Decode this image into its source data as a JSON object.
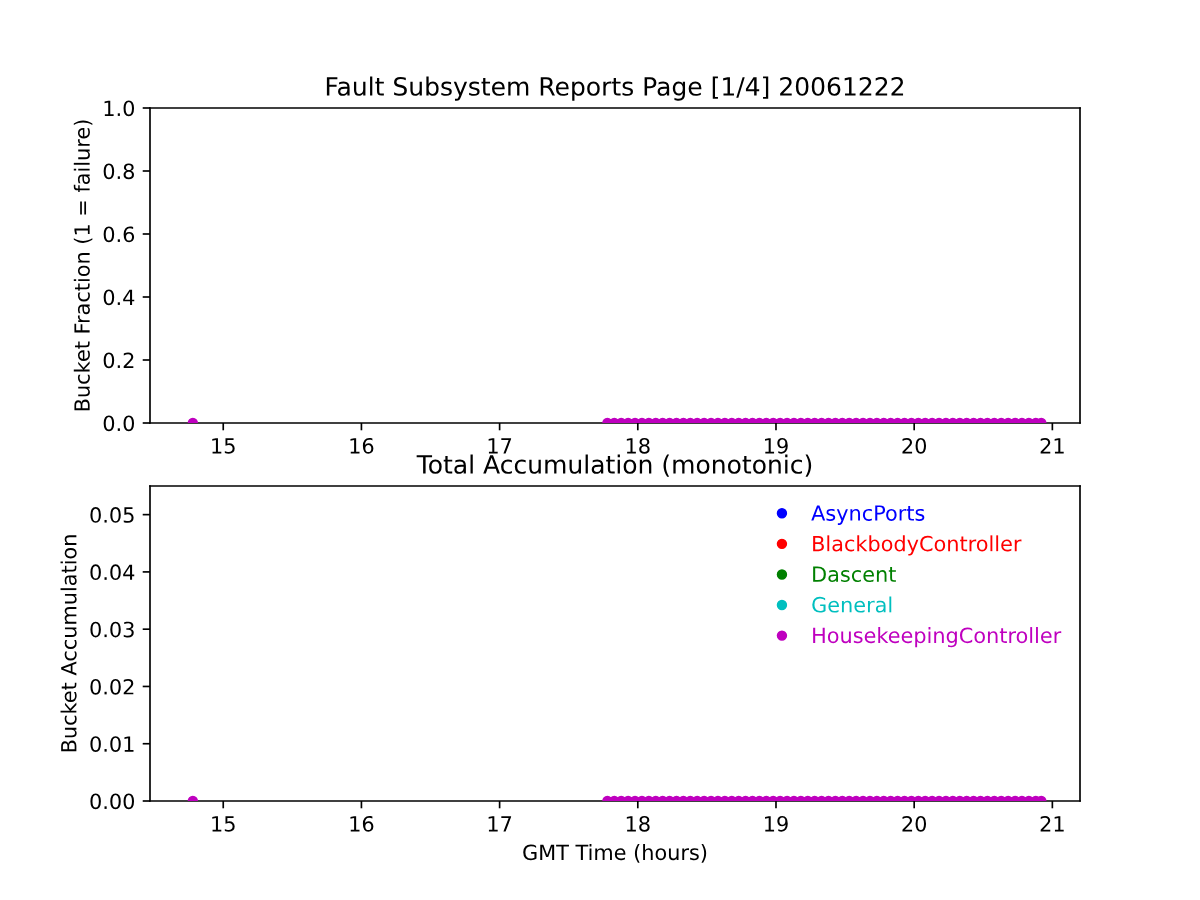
{
  "chart_data": [
    {
      "type": "scatter",
      "title": "Fault Subsystem Reports Page [1/4] 20061222",
      "ylabel": "Bucket Fraction (1 = failure)",
      "x": [
        14.78,
        17.78,
        17.83,
        17.88,
        17.93,
        17.98,
        18.03,
        18.08,
        18.13,
        18.18,
        18.23,
        18.28,
        18.33,
        18.38,
        18.43,
        18.48,
        18.53,
        18.58,
        18.63,
        18.68,
        18.73,
        18.78,
        18.83,
        18.88,
        18.93,
        18.98,
        19.03,
        19.08,
        19.13,
        19.18,
        19.23,
        19.28,
        19.33,
        19.38,
        19.43,
        19.48,
        19.53,
        19.58,
        19.63,
        19.68,
        19.73,
        19.78,
        19.83,
        19.88,
        19.93,
        19.98,
        20.03,
        20.08,
        20.13,
        20.18,
        20.23,
        20.28,
        20.33,
        20.38,
        20.43,
        20.48,
        20.53,
        20.58,
        20.63,
        20.68,
        20.73,
        20.78,
        20.83,
        20.88,
        20.92
      ],
      "series": [
        {
          "color": "#bf00bf",
          "values": [
            0,
            0,
            0,
            0,
            0,
            0,
            0,
            0,
            0,
            0,
            0,
            0,
            0,
            0,
            0,
            0,
            0,
            0,
            0,
            0,
            0,
            0,
            0,
            0,
            0,
            0,
            0,
            0,
            0,
            0,
            0,
            0,
            0,
            0,
            0,
            0,
            0,
            0,
            0,
            0,
            0,
            0,
            0,
            0,
            0,
            0,
            0,
            0,
            0,
            0,
            0,
            0,
            0,
            0,
            0,
            0,
            0,
            0,
            0,
            0,
            0,
            0,
            0,
            0,
            0
          ]
        }
      ],
      "xlim": [
        14.47,
        21.2
      ],
      "xticks": [
        15,
        16,
        17,
        18,
        19,
        20,
        21
      ],
      "ylim": [
        0,
        1
      ],
      "yticks": [
        {
          "value": 0,
          "label": "0.0"
        },
        {
          "value": 0.2,
          "label": "0.2"
        },
        {
          "value": 0.4,
          "label": "0.4"
        },
        {
          "value": 0.6,
          "label": "0.6"
        },
        {
          "value": 0.8,
          "label": "0.8"
        },
        {
          "value": 1.0,
          "label": "1.0"
        }
      ],
      "marker": "circle"
    },
    {
      "type": "scatter",
      "title": "Total Accumulation (monotonic)",
      "xlabel": "GMT Time (hours)",
      "ylabel": "Bucket Accumulation",
      "x": [
        14.78,
        17.78,
        17.83,
        17.88,
        17.93,
        17.98,
        18.03,
        18.08,
        18.13,
        18.18,
        18.23,
        18.28,
        18.33,
        18.38,
        18.43,
        18.48,
        18.53,
        18.58,
        18.63,
        18.68,
        18.73,
        18.78,
        18.83,
        18.88,
        18.93,
        18.98,
        19.03,
        19.08,
        19.13,
        19.18,
        19.23,
        19.28,
        19.33,
        19.38,
        19.43,
        19.48,
        19.53,
        19.58,
        19.63,
        19.68,
        19.73,
        19.78,
        19.83,
        19.88,
        19.93,
        19.98,
        20.03,
        20.08,
        20.13,
        20.18,
        20.23,
        20.28,
        20.33,
        20.38,
        20.43,
        20.48,
        20.53,
        20.58,
        20.63,
        20.68,
        20.73,
        20.78,
        20.83,
        20.88,
        20.92
      ],
      "series": [
        {
          "name": "AsyncPorts",
          "color": "#0000ff",
          "values": [
            null,
            null,
            null,
            null,
            null,
            null,
            null,
            null,
            null,
            null,
            null,
            null,
            null,
            null,
            null,
            null,
            null,
            null,
            null,
            null,
            null,
            null,
            null,
            null,
            null,
            null,
            null,
            null,
            null,
            null,
            null,
            null,
            null,
            null,
            null,
            null,
            null,
            null,
            null,
            null,
            null,
            null,
            null,
            null,
            null,
            null,
            null,
            null,
            null,
            null,
            null,
            null,
            null,
            null,
            null,
            null,
            null,
            null,
            null,
            null,
            null,
            null,
            null,
            null,
            null
          ]
        },
        {
          "name": "BlackbodyController",
          "color": "#ff0000",
          "values": [
            null,
            null,
            null,
            null,
            null,
            null,
            null,
            null,
            null,
            null,
            null,
            null,
            null,
            null,
            null,
            null,
            null,
            null,
            null,
            null,
            null,
            null,
            null,
            null,
            null,
            null,
            null,
            null,
            null,
            null,
            null,
            null,
            null,
            null,
            null,
            null,
            null,
            null,
            null,
            null,
            null,
            null,
            null,
            null,
            null,
            null,
            null,
            null,
            null,
            null,
            null,
            null,
            null,
            null,
            null,
            null,
            null,
            null,
            null,
            null,
            null,
            null,
            null,
            null,
            null
          ]
        },
        {
          "name": "Dascent",
          "color": "#008000",
          "values": [
            null,
            null,
            null,
            null,
            null,
            null,
            null,
            null,
            null,
            null,
            null,
            null,
            null,
            null,
            null,
            null,
            null,
            null,
            null,
            null,
            null,
            null,
            null,
            null,
            null,
            null,
            null,
            null,
            null,
            null,
            null,
            null,
            null,
            null,
            null,
            null,
            null,
            null,
            null,
            null,
            null,
            null,
            null,
            null,
            null,
            null,
            null,
            null,
            null,
            null,
            null,
            null,
            null,
            null,
            null,
            null,
            null,
            null,
            null,
            null,
            null,
            null,
            null,
            null,
            null
          ]
        },
        {
          "name": "General",
          "color": "#00bfbf",
          "values": [
            null,
            null,
            null,
            null,
            null,
            null,
            null,
            null,
            null,
            null,
            null,
            null,
            null,
            null,
            null,
            null,
            null,
            null,
            null,
            null,
            null,
            null,
            null,
            null,
            null,
            null,
            null,
            null,
            null,
            null,
            null,
            null,
            null,
            null,
            null,
            null,
            null,
            null,
            null,
            null,
            null,
            null,
            null,
            null,
            null,
            null,
            null,
            null,
            null,
            null,
            null,
            null,
            null,
            null,
            null,
            null,
            null,
            null,
            null,
            null,
            null,
            null,
            null,
            null,
            null
          ]
        },
        {
          "name": "HousekeepingController",
          "color": "#bf00bf",
          "values": [
            0,
            0,
            0,
            0,
            0,
            0,
            0,
            0,
            0,
            0,
            0,
            0,
            0,
            0,
            0,
            0,
            0,
            0,
            0,
            0,
            0,
            0,
            0,
            0,
            0,
            0,
            0,
            0,
            0,
            0,
            0,
            0,
            0,
            0,
            0,
            0,
            0,
            0,
            0,
            0,
            0,
            0,
            0,
            0,
            0,
            0,
            0,
            0,
            0,
            0,
            0,
            0,
            0,
            0,
            0,
            0,
            0,
            0,
            0,
            0,
            0,
            0,
            0,
            0,
            0
          ]
        }
      ],
      "xlim": [
        14.47,
        21.2
      ],
      "xticks": [
        15,
        16,
        17,
        18,
        19,
        20,
        21
      ],
      "ylim": [
        0,
        0.055
      ],
      "yticks": [
        {
          "value": 0,
          "label": "0.00"
        },
        {
          "value": 0.01,
          "label": "0.01"
        },
        {
          "value": 0.02,
          "label": "0.02"
        },
        {
          "value": 0.03,
          "label": "0.03"
        },
        {
          "value": 0.04,
          "label": "0.04"
        },
        {
          "value": 0.05,
          "label": "0.05"
        }
      ],
      "marker": "circle",
      "legend": "top right"
    }
  ]
}
